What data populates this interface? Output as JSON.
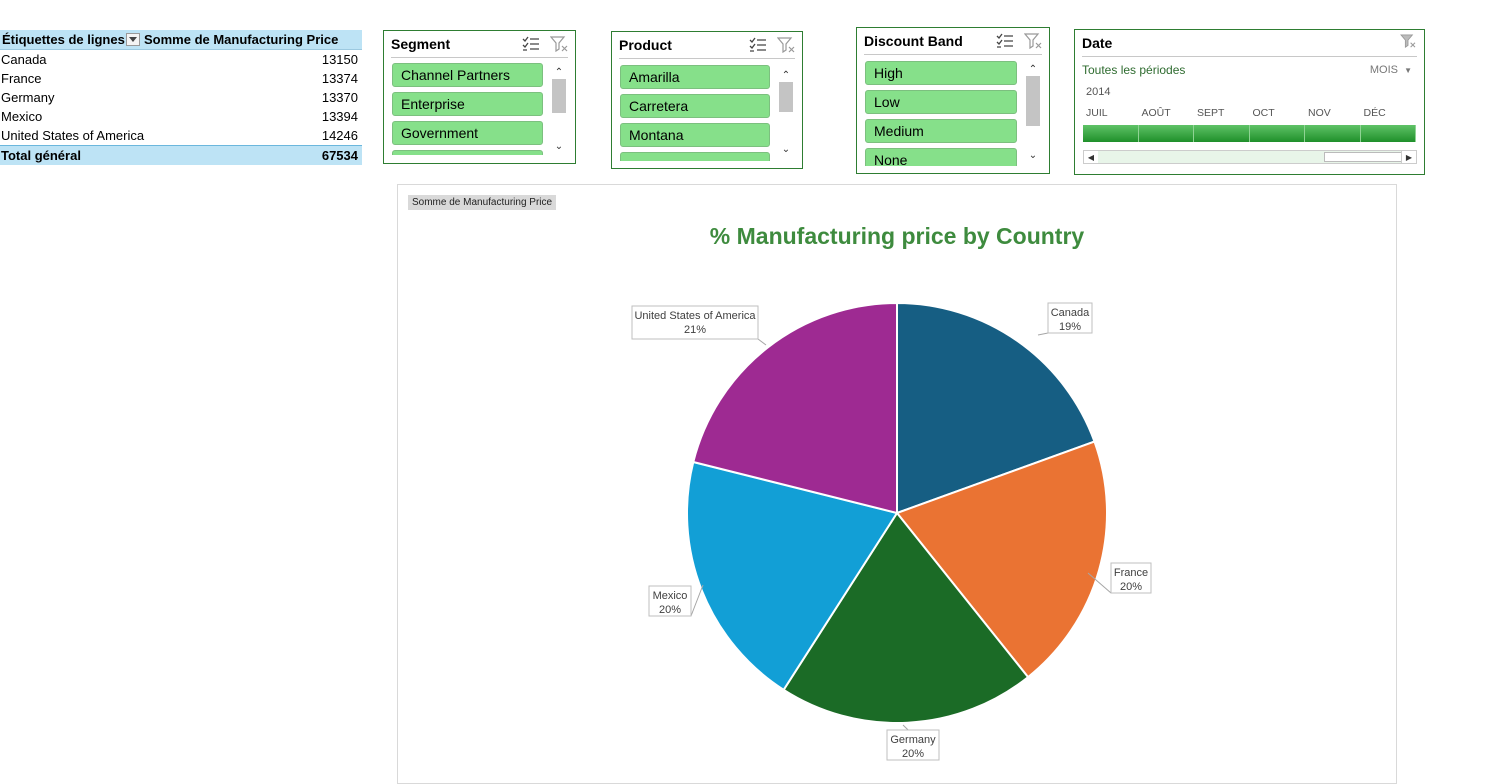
{
  "pivot": {
    "row_header": "Étiquettes de lignes",
    "value_header": "Somme de Manufacturing Price",
    "rows": [
      {
        "label": "Canada",
        "value": "13150"
      },
      {
        "label": "France",
        "value": "13374"
      },
      {
        "label": "Germany",
        "value": "13370"
      },
      {
        "label": "Mexico",
        "value": "13394"
      },
      {
        "label": "United States of America",
        "value": "14246"
      }
    ],
    "total_label": "Total général",
    "total_value": "67534"
  },
  "slicers": {
    "segment": {
      "title": "Segment",
      "items": [
        "Channel Partners",
        "Enterprise",
        "Government"
      ]
    },
    "product": {
      "title": "Product",
      "items": [
        "Amarilla",
        "Carretera",
        "Montana"
      ]
    },
    "discount": {
      "title": "Discount Band",
      "items": [
        "High",
        "Low",
        "Medium",
        "None"
      ]
    }
  },
  "timeline": {
    "title": "Date",
    "all_periods": "Toutes les périodes",
    "level": "MOIS",
    "year": "2014",
    "months": [
      "JUIL",
      "AOÛT",
      "SEPT",
      "OCT",
      "NOV",
      "DÉC"
    ]
  },
  "chart": {
    "field_button": "Somme  de Manufacturing Price",
    "title": "% Manufacturing price by Country"
  },
  "chart_data": {
    "type": "pie",
    "title": "% Manufacturing price by Country",
    "categories": [
      "Canada",
      "France",
      "Germany",
      "Mexico",
      "United States of America"
    ],
    "values": [
      13150,
      13374,
      13370,
      13394,
      14246
    ],
    "labels": [
      "19%",
      "20%",
      "20%",
      "20%",
      "21%"
    ],
    "colors": [
      "#165e83",
      "#ea7333",
      "#1b6b26",
      "#129fd6",
      "#9e2a92"
    ]
  }
}
